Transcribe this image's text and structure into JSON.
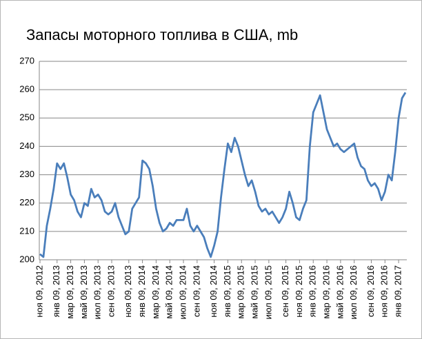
{
  "chart_data": {
    "type": "line",
    "title": "Запасы моторного топлива в США, mb",
    "categories": [
      "ноя 09, 2012",
      null,
      null,
      null,
      null,
      "янв 09, 2013",
      null,
      null,
      null,
      "мар 09, 2013",
      null,
      null,
      null,
      "май 09, 2013",
      null,
      null,
      null,
      "июл 09, 2013",
      null,
      null,
      null,
      "сен 09, 2013",
      null,
      null,
      null,
      null,
      "ноя 09, 2013",
      null,
      null,
      null,
      "янв 09, 2014",
      null,
      null,
      null,
      "мар 09, 2014",
      null,
      null,
      null,
      "май 09, 2014",
      null,
      null,
      null,
      "июл 09, 2014",
      null,
      null,
      null,
      "сен 09, 2014",
      null,
      null,
      null,
      null,
      "ноя 09, 2014",
      null,
      null,
      null,
      "янв 09, 2015",
      null,
      null,
      null,
      "мар 09, 2015",
      null,
      null,
      null,
      "май 09, 2015",
      null,
      null,
      null,
      "июл 09, 2015",
      null,
      null,
      null,
      null,
      "сен 09, 2015",
      null,
      null,
      null,
      "ноя 09, 2015",
      null,
      null,
      null,
      "янв 09, 2016",
      null,
      null,
      null,
      "мар 09, 2016",
      null,
      null,
      null,
      "май 09, 2016",
      null,
      null,
      null,
      "июл 09, 2016",
      null,
      null,
      null,
      null,
      "сен 09, 2016",
      null,
      null,
      null,
      "ноя 09, 2016",
      null,
      null,
      null,
      "янв 09, 2017",
      null,
      null
    ],
    "values": [
      202,
      201,
      212,
      218,
      225,
      234,
      232,
      234,
      229,
      223,
      221,
      217,
      215,
      220,
      219,
      225,
      222,
      223,
      221,
      217,
      216,
      217,
      220,
      215,
      212,
      209,
      210,
      218,
      220,
      222,
      235,
      234,
      232,
      226,
      218,
      213,
      210,
      211,
      213,
      212,
      214,
      214,
      214,
      218,
      212,
      210,
      212,
      210,
      208,
      204,
      201,
      205,
      210,
      222,
      232,
      241,
      238,
      243,
      240,
      235,
      230,
      226,
      228,
      224,
      219,
      217,
      218,
      216,
      217,
      215,
      213,
      215,
      218,
      224,
      220,
      215,
      214,
      218,
      221,
      240,
      252,
      255,
      258,
      252,
      246,
      243,
      240,
      241,
      239,
      238,
      239,
      240,
      241,
      236,
      233,
      232,
      228,
      226,
      227,
      225,
      221,
      224,
      230,
      228,
      238,
      250,
      257,
      259
    ],
    "color": "#4a7ebb",
    "ylim": [
      200,
      270
    ],
    "yticks": [
      200,
      210,
      220,
      230,
      240,
      250,
      260,
      270
    ],
    "grid": true
  }
}
